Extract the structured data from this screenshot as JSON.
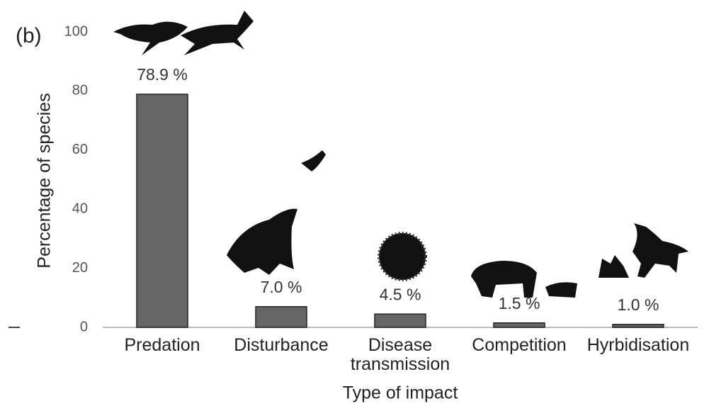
{
  "chart_data": {
    "type": "bar",
    "panel_label": "(b)",
    "x_label": "Type of impact",
    "y_label": "Percentage of species",
    "categories": [
      "Predation",
      "Disturbance",
      "Disease transmission",
      "Competition",
      "Hyrbidisation"
    ],
    "values": [
      78.9,
      7.0,
      4.5,
      1.5,
      1.0
    ],
    "value_labels": [
      "78.9 %",
      "7.0 %",
      "4.5 %",
      "1.5 %",
      "1.0 %"
    ],
    "color": "#666666",
    "ylim": [
      0,
      100
    ],
    "yticks": [
      0,
      20,
      40,
      60,
      80,
      100
    ]
  }
}
